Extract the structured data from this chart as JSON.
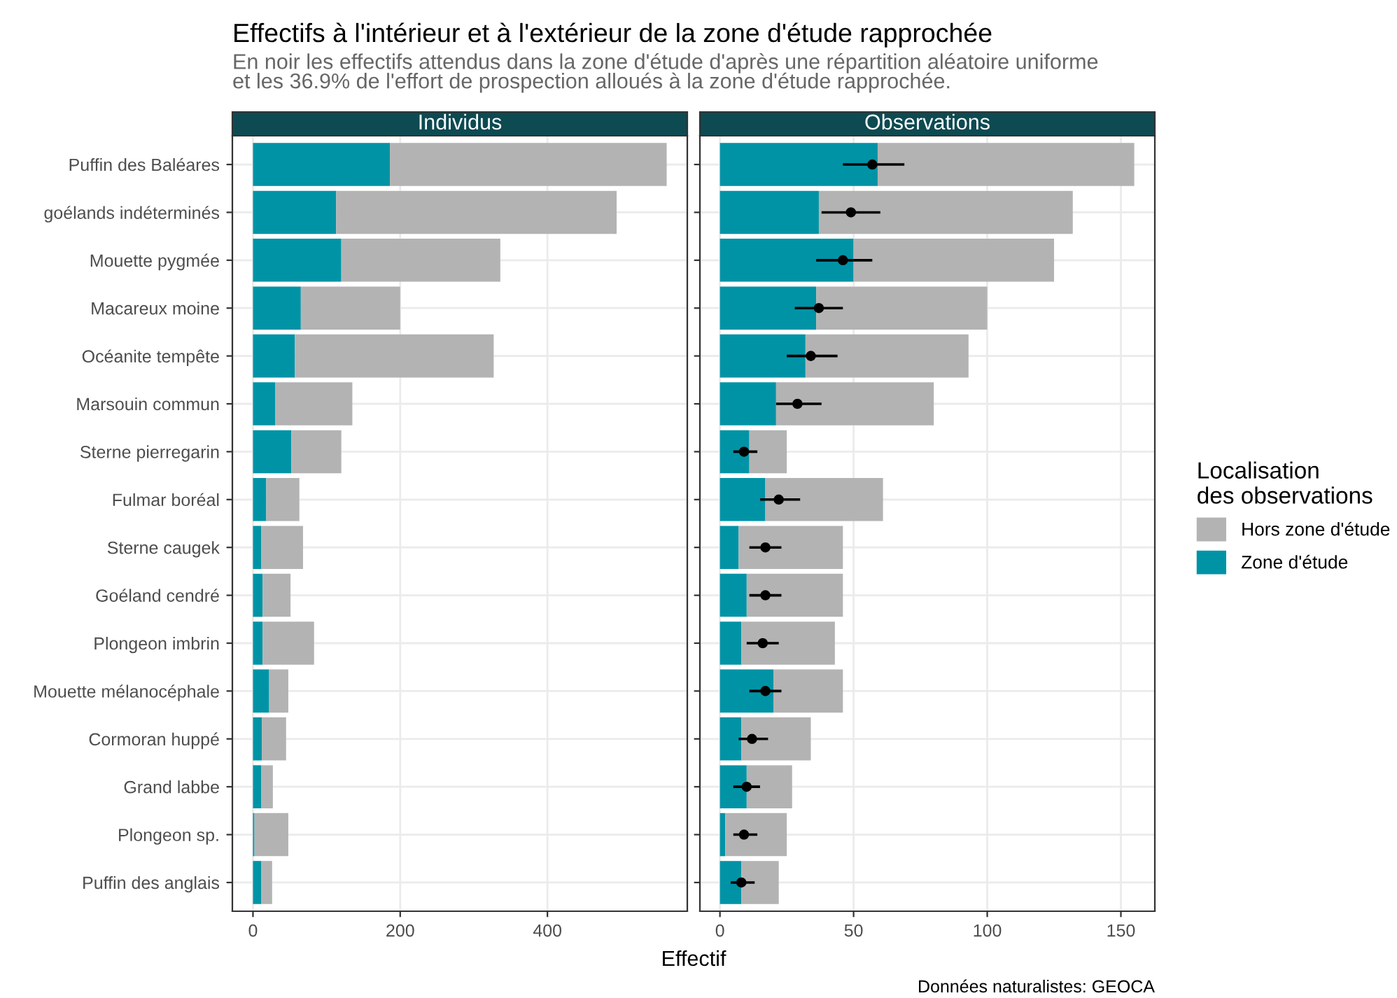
{
  "chart_data": [
    {
      "type": "bar",
      "orientation": "horizontal",
      "stacked": true,
      "title": "Effectifs à l'intérieur et à l'extérieur de la zone d'étude rapprochée",
      "subtitle": "En noir les effectifs attendus dans la zone d'étude d'après une répartition aléatoire uniforme\net les 36.9% de l'effort de prospection alloués à la zone d'étude rapprochée.",
      "annotations": [
        "Individus"
      ],
      "xlabel": "Effectif",
      "legend_title": "Localisation\ndes observations",
      "legend": "right",
      "grid": true,
      "categories": [
        "Puffin des Baléares",
        "goélands indéterminés",
        "Mouette pygmée",
        "Macareux moine",
        "Océanite tempête",
        "Marsouin commun",
        "Sterne pierregarin",
        "Fulmar boréal",
        "Sterne caugek",
        "Goéland cendré",
        "Plongeon imbrin",
        "Mouette mélanocéphale",
        "Cormoran huppé",
        "Grand labbe",
        "Plongeon sp.",
        "Puffin des anglais"
      ],
      "series": [
        {
          "name": "Zone d'étude",
          "color": "#0093a6",
          "values": [
            186,
            113,
            120,
            65,
            57,
            30,
            52,
            18,
            11,
            13,
            13,
            22,
            12,
            11,
            2,
            11
          ]
        },
        {
          "name": "Hors zone d'étude",
          "color": "#b3b3b3",
          "values": [
            376,
            381,
            216,
            135,
            270,
            105,
            68,
            45,
            57,
            38,
            70,
            26,
            33,
            16,
            46,
            15
          ]
        }
      ],
      "xlim": [
        -28,
        590
      ],
      "xticks": [
        0,
        200,
        400
      ]
    },
    {
      "type": "bar",
      "orientation": "horizontal",
      "stacked": true,
      "title": "Observations",
      "annotations": [
        "Données naturalistes: GEOCA"
      ],
      "grid": true,
      "tick_labels": "x",
      "marker": "circle",
      "categories": [
        "Puffin des Baléares",
        "goélands indéterminés",
        "Mouette pygmée",
        "Macareux moine",
        "Océanite tempête",
        "Marsouin commun",
        "Sterne pierregarin",
        "Fulmar boréal",
        "Sterne caugek",
        "Goéland cendré",
        "Plongeon imbrin",
        "Mouette mélanocéphale",
        "Cormoran huppé",
        "Grand labbe",
        "Plongeon sp.",
        "Puffin des anglais"
      ],
      "series": [
        {
          "name": "Zone d'étude",
          "color": "#0093a6",
          "values": [
            59,
            37,
            50,
            36,
            32,
            21,
            11,
            17,
            7,
            10,
            8,
            20,
            8,
            10,
            2,
            8
          ]
        },
        {
          "name": "Hors zone d'étude",
          "color": "#b3b3b3",
          "values": [
            96,
            95,
            75,
            64,
            61,
            59,
            14,
            44,
            39,
            36,
            35,
            26,
            26,
            17,
            23,
            14
          ]
        },
        {
          "type": "scatter",
          "color": "#000000",
          "values": [
            57,
            49,
            46,
            37,
            34,
            29,
            9,
            22,
            17,
            17,
            16,
            17,
            12,
            10,
            9,
            8
          ],
          "errors": [
            [
              46,
              69
            ],
            [
              38,
              60
            ],
            [
              36,
              57
            ],
            [
              28,
              46
            ],
            [
              25,
              44
            ],
            [
              21,
              38
            ],
            [
              5,
              14
            ],
            [
              15,
              30
            ],
            [
              11,
              23
            ],
            [
              11,
              23
            ],
            [
              10,
              22
            ],
            [
              11,
              23
            ],
            [
              7,
              18
            ],
            [
              5,
              15
            ],
            [
              5,
              14
            ],
            [
              4,
              13
            ]
          ]
        }
      ],
      "xlim": [
        -7.5,
        162.7
      ],
      "xticks": [
        0,
        50,
        100,
        150
      ]
    }
  ]
}
